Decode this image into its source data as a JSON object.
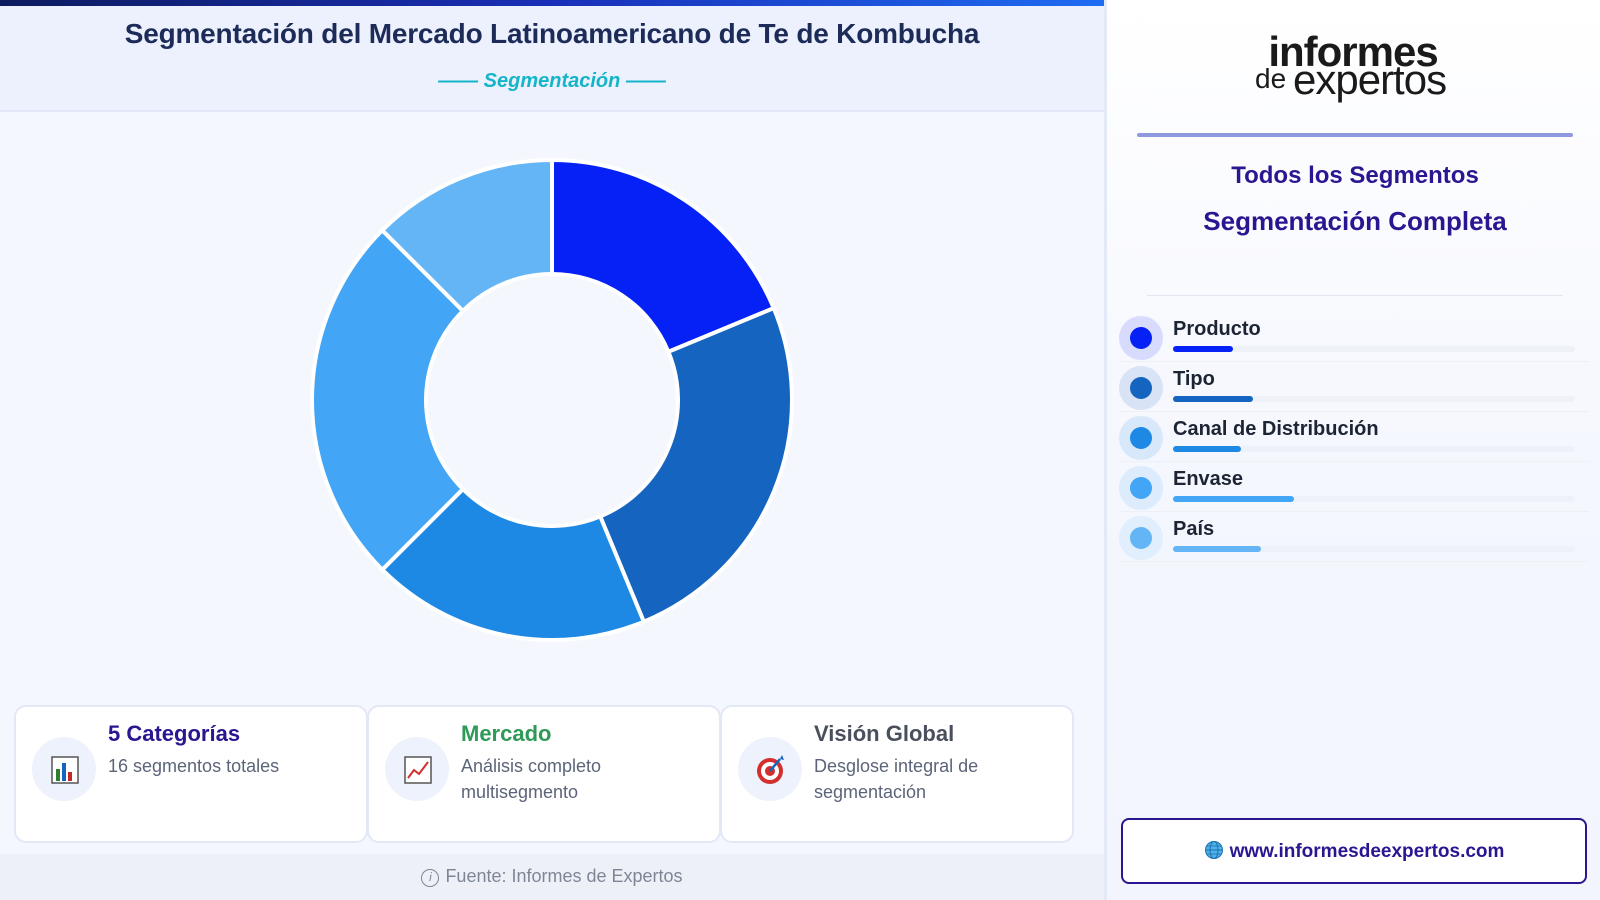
{
  "header": {
    "title": "Segmentación del Mercado Latinoamericano de Te de Kombucha",
    "subtitle": "—— Segmentación ——"
  },
  "chart_data": {
    "type": "pie",
    "style": "donut",
    "categories": [
      "Producto",
      "Tipo",
      "Canal de Distribución",
      "Envase",
      "País"
    ],
    "values": [
      3,
      4,
      3,
      4,
      2
    ],
    "colors": [
      "#0521f6",
      "#1565c0",
      "#1e88e5",
      "#42a5f5",
      "#64b5f6"
    ],
    "legend_position": "right"
  },
  "cards": [
    {
      "icon": "bar-chart-icon",
      "title": "5 Categorías",
      "title_color": "#2a1690",
      "desc": "16 segmentos totales"
    },
    {
      "icon": "line-chart-icon",
      "title": "Mercado",
      "title_color": "#2f9a57",
      "desc": "Análisis completo multisegmento"
    },
    {
      "icon": "target-icon",
      "title": "Visión Global",
      "title_color": "#4a4f5c",
      "desc": "Desglose integral de segmentación"
    }
  ],
  "footer": {
    "source": "Fuente: Informes de Expertos"
  },
  "sidebar": {
    "logo_line1": "informes",
    "logo_line2_a": "de",
    "logo_line2_b": "expertos",
    "heading1": "Todos los Segmentos",
    "heading2": "Segmentación Completa",
    "legend": [
      {
        "label": "Producto",
        "color": "#0521f6",
        "bar_fraction": 0.15
      },
      {
        "label": "Tipo",
        "color": "#1565c0",
        "bar_fraction": 0.2
      },
      {
        "label": "Canal de Distribución",
        "color": "#1e88e5",
        "bar_fraction": 0.17
      },
      {
        "label": "Envase",
        "color": "#42a5f5",
        "bar_fraction": 0.3
      },
      {
        "label": "País",
        "color": "#64b5f6",
        "bar_fraction": 0.22
      }
    ],
    "url": "www.informesdeexpertos.com"
  }
}
